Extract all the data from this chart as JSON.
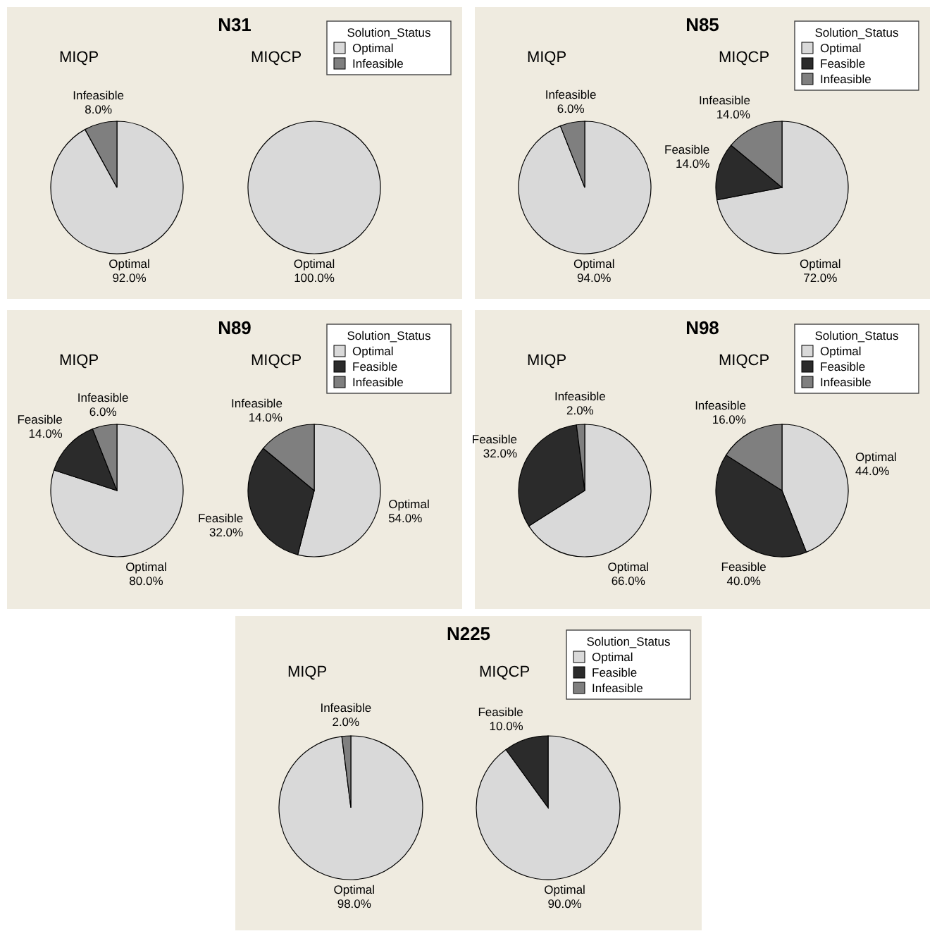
{
  "chart_data": [
    {
      "type": "pie",
      "title": "N31",
      "legend_title": "Solution_Status",
      "legend": "top right",
      "categories": [
        "Optimal",
        "Infeasible"
      ],
      "colors": [
        "#d9d9d9",
        "#7f7f7f"
      ],
      "series": [
        {
          "name": "MIQP",
          "values": [
            92,
            8
          ],
          "value_labels": [
            "92.0%",
            "8.0%"
          ]
        },
        {
          "name": "MIQCP",
          "values": [
            100,
            0
          ],
          "value_labels": [
            "100.0%",
            null
          ]
        }
      ]
    },
    {
      "type": "pie",
      "title": "N85",
      "legend_title": "Solution_Status",
      "legend": "top right",
      "categories": [
        "Optimal",
        "Feasible",
        "Infeasible"
      ],
      "colors": [
        "#d9d9d9",
        "#2b2b2b",
        "#7f7f7f"
      ],
      "series": [
        {
          "name": "MIQP",
          "values": [
            94,
            0,
            6
          ],
          "value_labels": [
            "94.0%",
            null,
            "6.0%"
          ]
        },
        {
          "name": "MIQCP",
          "values": [
            72,
            14,
            14
          ],
          "value_labels": [
            "72.0%",
            "14.0%",
            "14.0%"
          ]
        }
      ]
    },
    {
      "type": "pie",
      "title": "N89",
      "legend_title": "Solution_Status",
      "legend": "top right",
      "categories": [
        "Optimal",
        "Feasible",
        "Infeasible"
      ],
      "colors": [
        "#d9d9d9",
        "#2b2b2b",
        "#7f7f7f"
      ],
      "series": [
        {
          "name": "MIQP",
          "values": [
            80,
            14,
            6
          ],
          "value_labels": [
            "80.0%",
            "14.0%",
            "6.0%"
          ]
        },
        {
          "name": "MIQCP",
          "values": [
            54,
            32,
            14
          ],
          "value_labels": [
            "54.0%",
            "32.0%",
            "14.0%"
          ]
        }
      ]
    },
    {
      "type": "pie",
      "title": "N98",
      "legend_title": "Solution_Status",
      "legend": "top right",
      "categories": [
        "Optimal",
        "Feasible",
        "Infeasible"
      ],
      "colors": [
        "#d9d9d9",
        "#2b2b2b",
        "#7f7f7f"
      ],
      "series": [
        {
          "name": "MIQP",
          "values": [
            66,
            32,
            2
          ],
          "value_labels": [
            "66.0%",
            "32.0%",
            "2.0%"
          ]
        },
        {
          "name": "MIQCP",
          "values": [
            44,
            40,
            16
          ],
          "value_labels": [
            "44.0%",
            "40.0%",
            "16.0%"
          ]
        }
      ]
    },
    {
      "type": "pie",
      "title": "N225",
      "legend_title": "Solution_Status",
      "legend": "top right",
      "categories": [
        "Optimal",
        "Feasible",
        "Infeasible"
      ],
      "colors": [
        "#d9d9d9",
        "#2b2b2b",
        "#7f7f7f"
      ],
      "series": [
        {
          "name": "MIQP",
          "values": [
            98,
            0,
            2
          ],
          "value_labels": [
            "98.0%",
            null,
            "2.0%"
          ]
        },
        {
          "name": "MIQCP",
          "values": [
            90,
            10,
            0
          ],
          "value_labels": [
            "90.0%",
            "10.0%",
            null
          ]
        }
      ]
    }
  ]
}
